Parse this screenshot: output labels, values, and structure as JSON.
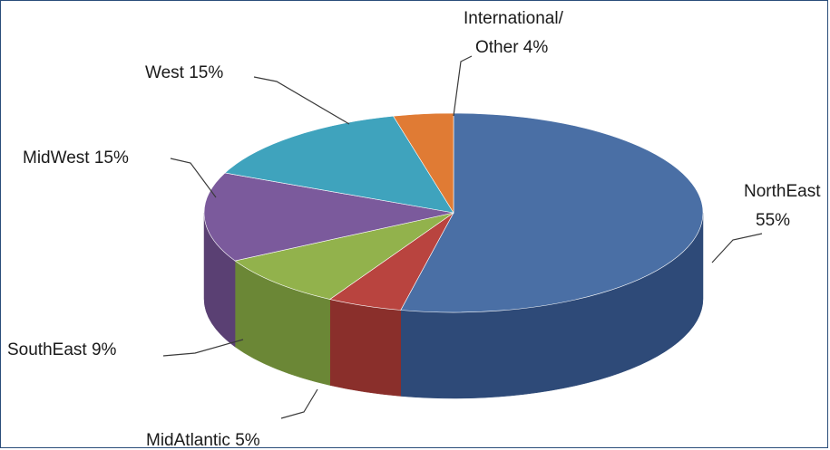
{
  "chart_data": {
    "type": "pie",
    "title": "",
    "three_d": true,
    "slices": [
      {
        "label": "NorthEast",
        "value": 55,
        "value_label": "55%",
        "color": "#4a6fa5",
        "side": "#2e4a78"
      },
      {
        "label": "MidAtlantic",
        "value": 5,
        "value_label": "5%",
        "color": "#b9443f",
        "side": "#8a2f2b"
      },
      {
        "label": "SouthEast",
        "value": 9,
        "value_label": "9%",
        "color": "#92b24c",
        "side": "#6b8736"
      },
      {
        "label": "MidWest",
        "value": 15,
        "value_label": "15%",
        "color": "#7b5a9c",
        "side": "#5a4073"
      },
      {
        "label": "West",
        "value": 15,
        "value_label": "15%",
        "color": "#3fa3bd",
        "side": "#2c7a8f"
      },
      {
        "label": "International/ Other",
        "value": 4,
        "value_label": "4%",
        "color": "#e07b34",
        "side": "#b35d22"
      }
    ],
    "text_labels": {
      "northeast_line1": "NorthEast",
      "northeast_line2": "55%",
      "midatlantic": "MidAtlantic  5%",
      "southeast": "SouthEast  9%",
      "midwest": "MidWest 15%",
      "west": "West 15%",
      "intl_line1": "International/",
      "intl_line2": "Other 4%"
    }
  }
}
